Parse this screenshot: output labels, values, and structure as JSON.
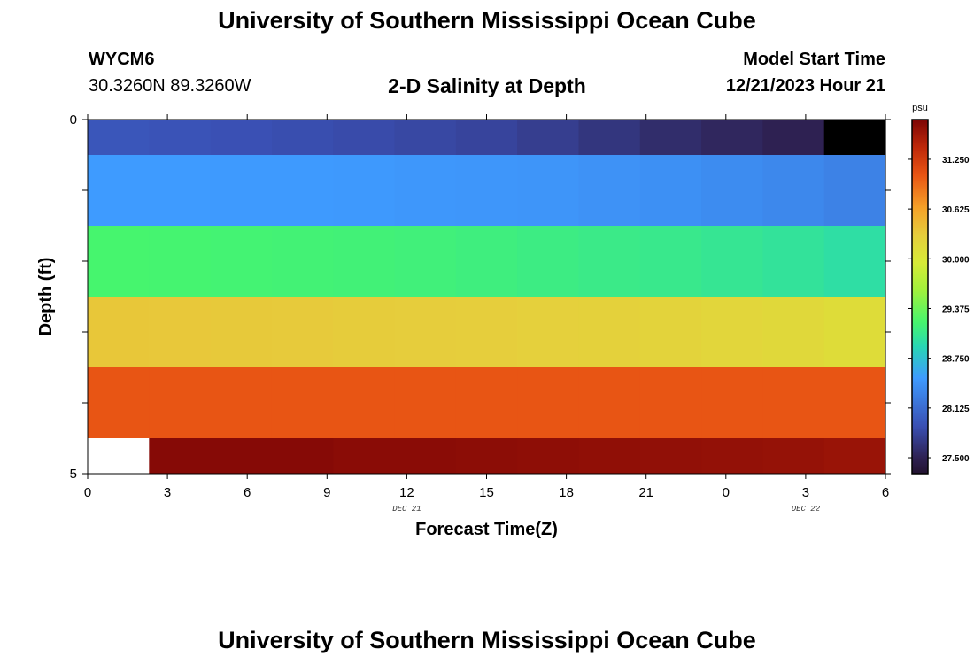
{
  "header": {
    "title_top": "University of Southern Mississippi Ocean Cube",
    "title_bottom": "University of Southern Mississippi Ocean Cube",
    "station_id": "WYCM6",
    "station_coords": "30.3260N  89.3260W",
    "plot_title": "2-D Salinity at Depth",
    "model_start_label": "Model Start Time",
    "model_start_value": "12/21/2023 Hour 21"
  },
  "chart_data": {
    "type": "heatmap",
    "title": "2-D Salinity at Depth",
    "xlabel": "Forecast Time(Z)",
    "ylabel": "Depth (ft)",
    "x_tick_labels": [
      "0",
      "3",
      "6",
      "9",
      "12",
      "15",
      "18",
      "21",
      "0",
      "3",
      "6"
    ],
    "x_date_labels": [
      {
        "text": "DEC 21",
        "at_hour": 12
      },
      {
        "text": "DEC 22",
        "at_hour": 27
      }
    ],
    "xlim_hours": [
      0,
      30
    ],
    "y_tick_labels": [
      "0",
      "5"
    ],
    "ylim": [
      0,
      5
    ],
    "colorbar": {
      "unit": "psu",
      "ticks": [
        "31.250",
        "30.625",
        "30.000",
        "29.375",
        "28.750",
        "28.125",
        "27.500"
      ],
      "tick_values": [
        31.25,
        30.625,
        30.0,
        29.375,
        28.75,
        28.125,
        27.5
      ],
      "range": [
        27.3,
        31.75
      ]
    },
    "layers": [
      {
        "depth_range": [
          0,
          0.5
        ],
        "values": [
          27.95,
          27.92,
          27.9,
          27.88,
          27.86,
          27.83,
          27.8,
          27.75,
          27.68,
          27.6,
          27.55,
          27.5,
          27.45
        ]
      },
      {
        "depth_range": [
          0.5,
          1.5
        ],
        "values": [
          28.5,
          28.5,
          28.49,
          28.49,
          28.48,
          28.47,
          28.46,
          28.45,
          28.43,
          28.41,
          28.38,
          28.35,
          28.3
        ]
      },
      {
        "depth_range": [
          1.5,
          2.5
        ],
        "values": [
          29.2,
          29.19,
          29.18,
          29.17,
          29.16,
          29.15,
          29.13,
          29.11,
          29.09,
          29.07,
          29.04,
          29.01,
          28.97
        ]
      },
      {
        "depth_range": [
          2.5,
          3.5
        ],
        "values": [
          30.35,
          30.34,
          30.33,
          30.32,
          30.31,
          30.3,
          30.29,
          30.27,
          30.25,
          30.23,
          30.2,
          30.17,
          30.12
        ]
      },
      {
        "depth_range": [
          3.5,
          4.5
        ],
        "values": [
          31.05,
          31.05,
          31.05,
          31.05,
          31.05,
          31.05,
          31.05,
          31.05,
          31.05,
          31.05,
          31.05,
          31.05,
          31.05
        ]
      },
      {
        "depth_range": [
          4.5,
          5.0
        ],
        "values": [
          null,
          31.7,
          31.7,
          31.7,
          31.68,
          31.68,
          31.67,
          31.66,
          31.65,
          31.64,
          31.63,
          31.62,
          31.6
        ]
      }
    ]
  }
}
